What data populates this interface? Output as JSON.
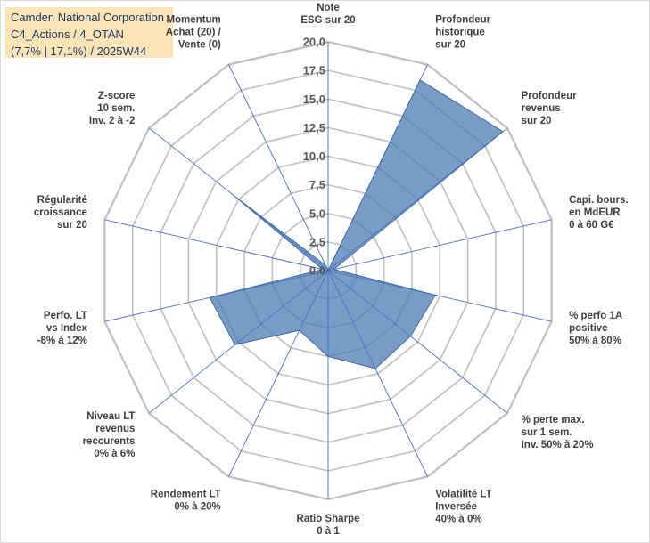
{
  "title_box": {
    "line1": "Camden National Corporation",
    "line2": "C4_Actions / 4_OTAN",
    "line3": "(7,7% | 17,1%) / 2025W44"
  },
  "colors": {
    "fill": "#4e79b1",
    "fill_opacity": 0.75,
    "grid": "#bfbfbf",
    "spoke": "#4472c4",
    "title_bg": "#fbe5b6",
    "title_text": "#1f3864"
  },
  "chart_data": {
    "type": "radar",
    "scale": {
      "min": 0,
      "max": 20,
      "step": 2.5
    },
    "tick_labels": [
      "0,0",
      "2,5",
      "5,0",
      "7,5",
      "10,0",
      "12,5",
      "15,0",
      "17,5",
      "20,0"
    ],
    "axes": [
      {
        "label": [
          "Note",
          "ESG sur 20"
        ],
        "value": 0
      },
      {
        "label": [
          "Profondeur",
          "historique",
          "sur 20"
        ],
        "value": 18.5
      },
      {
        "label": [
          "Profondeur",
          "revenus",
          "sur 20"
        ],
        "value": 19.5
      },
      {
        "label": [
          "Capi. bours.",
          "en MdEUR",
          "0 à 60 G€"
        ],
        "value": 0.5
      },
      {
        "label": [
          "% perfo 1A",
          "positive",
          "50% à 80%"
        ],
        "value": 9.6
      },
      {
        "label": [
          "% perte max.",
          "sur 1 sem.",
          "Inv. 50% à 20%"
        ],
        "value": 9.2
      },
      {
        "label": [
          "Volatilité LT",
          "Inversée",
          "40% à 0%"
        ],
        "value": 9.5
      },
      {
        "label": [
          "Ratio Sharpe",
          "0 à 1"
        ],
        "value": 7.5
      },
      {
        "label": [
          "Rendement LT",
          "0% à 20%"
        ],
        "value": 5.8
      },
      {
        "label": [
          "Niveau LT",
          "revenus",
          "reccurents",
          "0% à 6%"
        ],
        "value": 10.4
      },
      {
        "label": [
          "Perfo. LT",
          "vs Index",
          "-8% à 12%"
        ],
        "value": 10.6
      },
      {
        "label": [
          "Régularité",
          "croissance",
          "sur 20"
        ],
        "value": 0.5
      },
      {
        "label": [
          "Z-score",
          "10 sem.",
          "Inv. 2 à -2"
        ],
        "value": 10.5
      },
      {
        "label": [
          "Momentum",
          "Achat (20) /",
          "Vente (0)"
        ],
        "value": 0.5
      }
    ]
  }
}
